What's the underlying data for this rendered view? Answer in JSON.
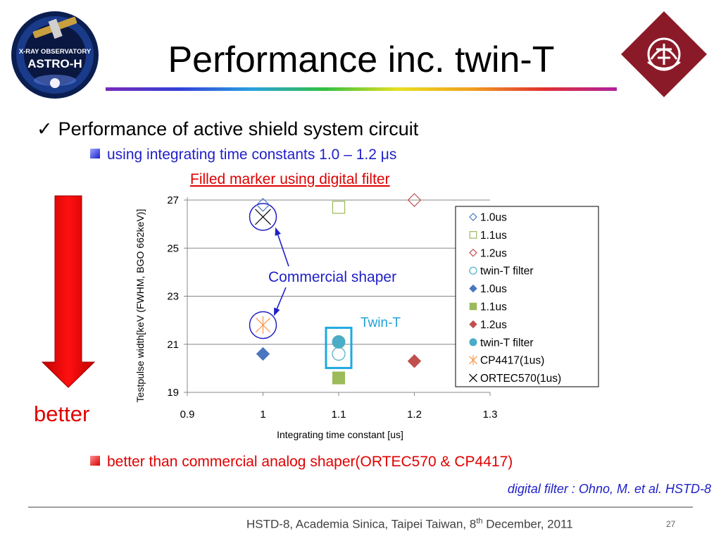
{
  "slide": {
    "title": "Performance inc. twin-T",
    "bullet1": "Performance of active shield system circuit",
    "bullet1_check": "✓",
    "bullet2": "using integrating time constants 1.0 – 1.2 μs",
    "filled_note": "Filled marker  using digital filter",
    "better_label": "better",
    "bullet3": "better than commercial analog shaper(ORTEC570 & CP4417)",
    "citation": "digital filter : Ohno, M. et al. HSTD-8",
    "footer_text": "HSTD-8, Academia Sinica, Taipei Taiwan, 8",
    "footer_sup": "th",
    "footer_tail": " December, 2011",
    "page_number": "27",
    "logo_left_text": [
      "X-RAY OBSERVATORY",
      "ASTRO-H"
    ],
    "accent_red": "#e00000",
    "accent_blue": "#1f1fc8"
  },
  "chart_data": {
    "type": "scatter",
    "xlabel": "Integrating time constant [us]",
    "ylabel": "Testpulse width[keV (FWHM, BGO 662keV)]",
    "xlim": [
      0.9,
      1.3
    ],
    "ylim": [
      19,
      27
    ],
    "xticks": [
      "0.9",
      "1",
      "1.1",
      "1.2",
      "1.3"
    ],
    "yticks": [
      "19",
      "21",
      "23",
      "25",
      "27"
    ],
    "grid": "horizontal",
    "legend_placement": "right",
    "series": [
      {
        "name": "1.0us",
        "marker": "diamond",
        "filled": false,
        "color": "#4a76c0",
        "points": [
          [
            1.0,
            26.8
          ]
        ]
      },
      {
        "name": "1.1us",
        "marker": "square",
        "filled": false,
        "color": "#9bbb59",
        "points": [
          [
            1.1,
            26.7
          ]
        ]
      },
      {
        "name": "1.2us",
        "marker": "diamond",
        "filled": false,
        "color": "#c0504d",
        "points": [
          [
            1.2,
            27.0
          ]
        ]
      },
      {
        "name": "twin-T filter",
        "marker": "circle",
        "filled": false,
        "color": "#4bacc6",
        "points": [
          [
            1.1,
            20.6
          ]
        ]
      },
      {
        "name": "1.0us",
        "marker": "diamond",
        "filled": true,
        "color": "#4a76c0",
        "points": [
          [
            1.0,
            20.6
          ]
        ]
      },
      {
        "name": "1.1us",
        "marker": "square",
        "filled": true,
        "color": "#9bbb59",
        "points": [
          [
            1.1,
            19.6
          ]
        ]
      },
      {
        "name": "1.2us",
        "marker": "diamond",
        "filled": true,
        "color": "#c0504d",
        "points": [
          [
            1.2,
            20.3
          ]
        ]
      },
      {
        "name": "twin-T filter",
        "marker": "circle",
        "filled": true,
        "color": "#4bacc6",
        "points": [
          [
            1.1,
            21.1
          ]
        ]
      },
      {
        "name": "CP4417(1us)",
        "marker": "asterisk",
        "filled": false,
        "color": "#f79646",
        "points": [
          [
            1.0,
            21.8
          ]
        ]
      },
      {
        "name": "ORTEC570(1us)",
        "marker": "x",
        "filled": false,
        "color": "#000000",
        "points": [
          [
            1.0,
            26.3
          ]
        ]
      }
    ],
    "annotations": [
      {
        "text": "Commercial  shaper",
        "color": "#1f1fc8"
      },
      {
        "text": "Twin-T",
        "color": "#1fa0d8"
      }
    ]
  }
}
